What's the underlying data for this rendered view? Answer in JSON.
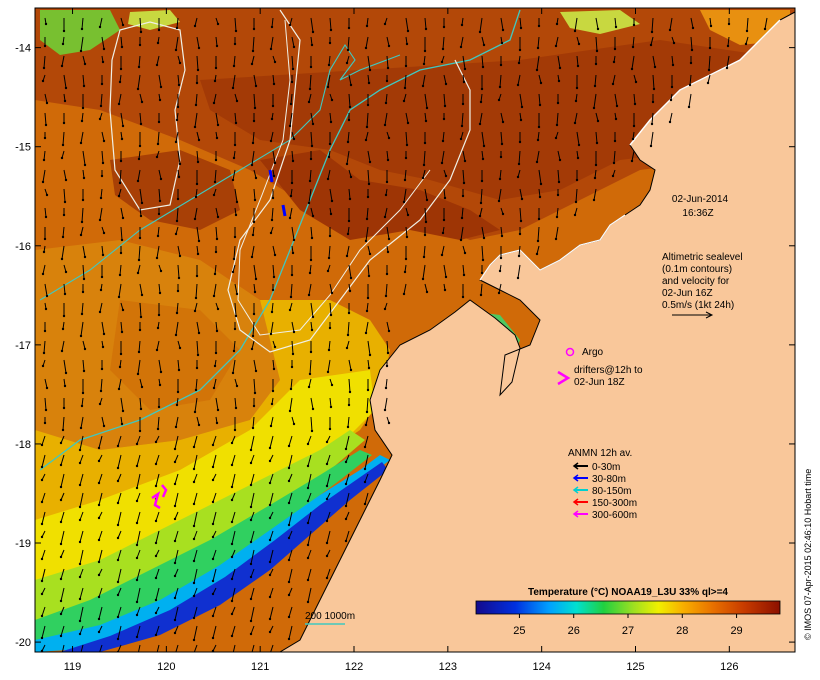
{
  "map": {
    "lon_range": [
      118.6,
      126.7
    ],
    "lat_range": [
      -20.1,
      -13.6
    ],
    "lon_ticks": [
      119,
      120,
      121,
      122,
      123,
      124,
      125,
      126
    ],
    "lat_ticks": [
      -14,
      -15,
      -16,
      -17,
      -18,
      -19,
      -20
    ],
    "colors": {
      "land": "#f9c79a",
      "frame": "#000000",
      "isobath": "#40c8c0",
      "sealevel": "#f0f0e6"
    }
  },
  "annotations": {
    "date": "02-Jun-2014",
    "time": "16:36Z",
    "sealevel_lines": [
      "Altimetric sealevel",
      "(0.1m contours)",
      "and velocity for",
      "02-Jun 16Z",
      "0.5m/s (1kt 24h)"
    ],
    "argo_label": "Argo",
    "drifter_lines": [
      "drifters@12h to",
      "02-Jun 18Z"
    ],
    "isobath_label": "200  1000m",
    "credit": "© IMOS 07-Apr-2015 02:46:10 Hobart time"
  },
  "legend": {
    "title": "ANMN 12h av.",
    "items": [
      {
        "label": "0-30m",
        "color": "#000000"
      },
      {
        "label": "30-80m",
        "color": "#0000ff"
      },
      {
        "label": "80-150m",
        "color": "#00d0d0"
      },
      {
        "label": "150-300m",
        "color": "#ff0000"
      },
      {
        "label": "300-600m",
        "color": "#ff00ff"
      }
    ]
  },
  "colorbar": {
    "title": "Temperature (°C) NOAA19_L3U 33% ql>=4",
    "range": [
      24.2,
      29.8
    ],
    "ticks": [
      25,
      26,
      27,
      28,
      29
    ]
  }
}
